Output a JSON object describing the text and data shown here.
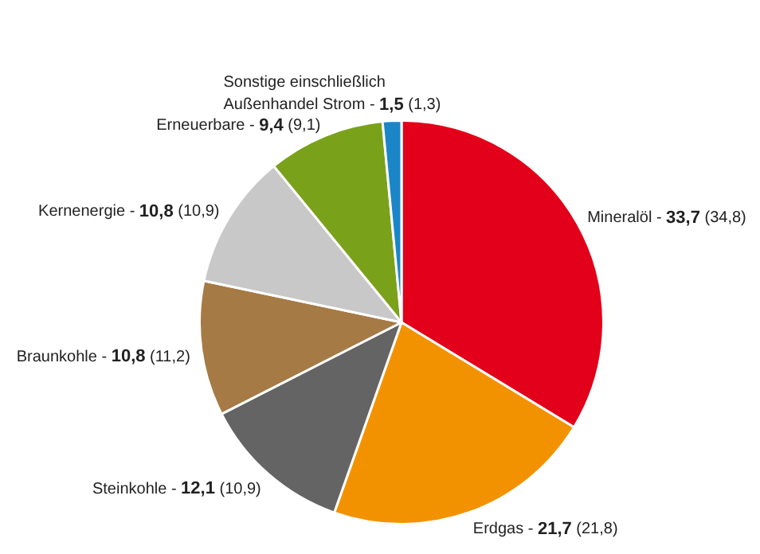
{
  "chart_data": {
    "type": "pie",
    "categories": [
      "Mineralöl -",
      "Erdgas -",
      "Steinkohle -",
      "Braunkohle -",
      "Kernenergie -",
      "Erneuerbare -",
      "Sonstige einschließlich Außenhandel Strom -"
    ],
    "values": [
      33.7,
      21.7,
      12.1,
      10.8,
      10.8,
      9.4,
      1.5
    ],
    "value_labels": [
      "33,7 (34,8)",
      "21,7 (21,8)",
      "12,1 (10,9)",
      "10,8 (11,2)",
      "10,8 (10,9)",
      "9,4 (9,1)",
      "1,5 (1,3)"
    ],
    "colors": [
      "#e2001a",
      "#f39200",
      "#646464",
      "#a57a45",
      "#c8c8c8",
      "#7aa11a",
      "#1a86c8"
    ],
    "legend": false
  }
}
